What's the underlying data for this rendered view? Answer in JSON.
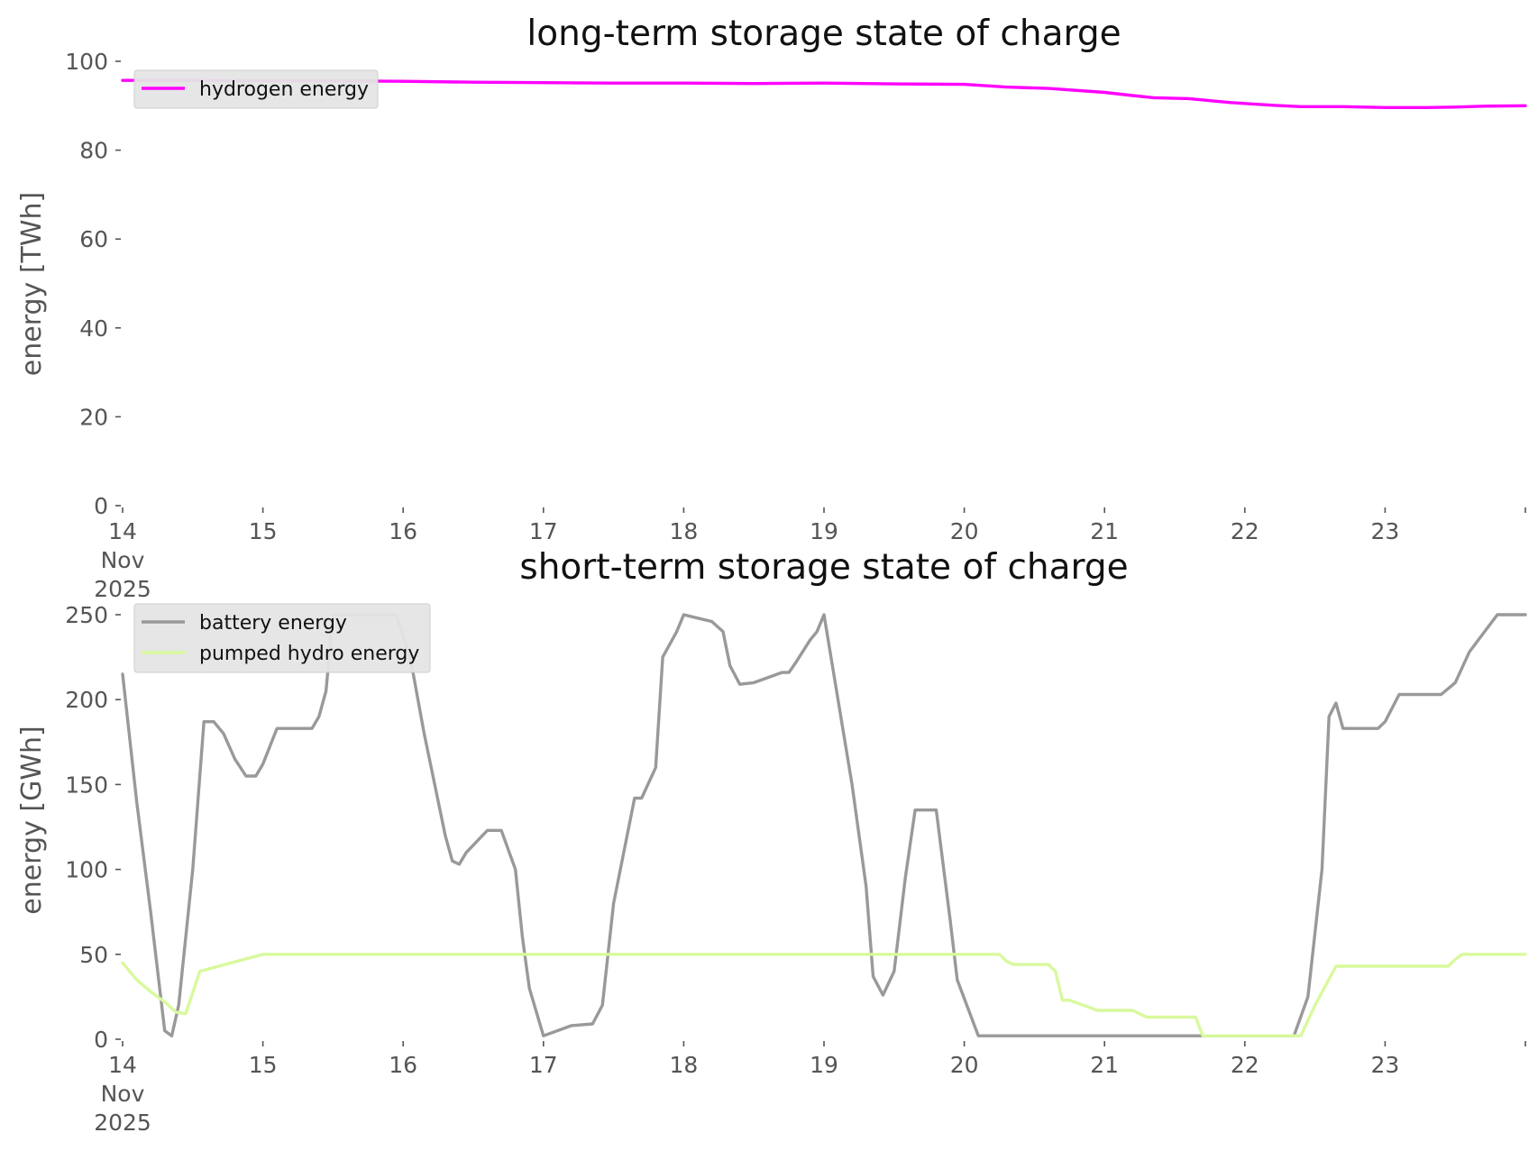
{
  "chart_data": [
    {
      "type": "line",
      "title": "long-term storage state of charge",
      "xlabel": "",
      "ylabel": "energy [TWh]",
      "x_unit": "days (Nov 2025)",
      "xlim": [
        14,
        24
      ],
      "ylim": [
        0,
        100
      ],
      "x_ticks": [
        {
          "value": 14,
          "label": "14",
          "sub": [
            "Nov",
            "2025"
          ]
        },
        {
          "value": 15,
          "label": "15"
        },
        {
          "value": 16,
          "label": "16"
        },
        {
          "value": 17,
          "label": "17"
        },
        {
          "value": 18,
          "label": "18"
        },
        {
          "value": 19,
          "label": "19"
        },
        {
          "value": 20,
          "label": "20"
        },
        {
          "value": 21,
          "label": "21"
        },
        {
          "value": 22,
          "label": "22"
        },
        {
          "value": 23,
          "label": "23"
        },
        {
          "value": 24,
          "label": ""
        }
      ],
      "y_ticks": [
        0,
        20,
        40,
        60,
        80,
        100
      ],
      "grid": false,
      "legend": "upper-left",
      "series": [
        {
          "name": "hydrogen energy",
          "color": "#ff00ff",
          "x": [
            14.0,
            14.5,
            15.0,
            15.5,
            16.0,
            16.5,
            17.0,
            17.5,
            18.0,
            18.5,
            19.0,
            19.5,
            20.0,
            20.3,
            20.6,
            21.0,
            21.2,
            21.35,
            21.6,
            21.9,
            22.2,
            22.4,
            22.7,
            23.0,
            23.3,
            23.5,
            23.7,
            24.0
          ],
          "y": [
            95.7,
            95.7,
            95.6,
            95.6,
            95.5,
            95.3,
            95.2,
            95.1,
            95.1,
            95.0,
            95.1,
            94.9,
            94.8,
            94.2,
            93.9,
            93.0,
            92.3,
            91.8,
            91.6,
            90.7,
            90.1,
            89.8,
            89.8,
            89.6,
            89.6,
            89.7,
            89.9,
            90.0
          ]
        }
      ]
    },
    {
      "type": "line",
      "title": "short-term storage state of charge",
      "xlabel": "",
      "ylabel": "energy [GWh]",
      "x_unit": "days (Nov 2025)",
      "xlim": [
        14,
        24
      ],
      "ylim": [
        0,
        250
      ],
      "x_ticks": [
        {
          "value": 14,
          "label": "14",
          "sub": [
            "Nov",
            "2025"
          ]
        },
        {
          "value": 15,
          "label": "15"
        },
        {
          "value": 16,
          "label": "16"
        },
        {
          "value": 17,
          "label": "17"
        },
        {
          "value": 18,
          "label": "18"
        },
        {
          "value": 19,
          "label": "19"
        },
        {
          "value": 20,
          "label": "20"
        },
        {
          "value": 21,
          "label": "21"
        },
        {
          "value": 22,
          "label": "22"
        },
        {
          "value": 23,
          "label": "23"
        },
        {
          "value": 24,
          "label": ""
        }
      ],
      "y_ticks": [
        0,
        50,
        100,
        150,
        200,
        250
      ],
      "grid": false,
      "legend": "upper-left",
      "series": [
        {
          "name": "battery energy",
          "color": "#999999",
          "x": [
            14.0,
            14.1,
            14.2,
            14.3,
            14.35,
            14.4,
            14.5,
            14.58,
            14.65,
            14.72,
            14.8,
            14.88,
            14.95,
            15.0,
            15.1,
            15.35,
            15.4,
            15.45,
            15.5,
            15.6,
            15.8,
            15.95,
            16.05,
            16.15,
            16.3,
            16.35,
            16.4,
            16.45,
            16.6,
            16.7,
            16.8,
            16.85,
            16.9,
            17.0,
            17.2,
            17.35,
            17.42,
            17.5,
            17.65,
            17.7,
            17.8,
            17.85,
            17.95,
            18.0,
            18.1,
            18.2,
            18.28,
            18.33,
            18.4,
            18.5,
            18.7,
            18.75,
            18.8,
            18.9,
            18.95,
            19.0,
            19.2,
            19.3,
            19.35,
            19.42,
            19.5,
            19.58,
            19.65,
            19.72,
            19.8,
            19.9,
            19.95,
            20.1,
            22.0,
            22.35,
            22.45,
            22.55,
            22.6,
            22.65,
            22.7,
            22.85,
            22.95,
            23.0,
            23.1,
            23.3,
            23.4,
            23.5,
            23.6,
            23.8,
            24.0
          ],
          "y": [
            215,
            140,
            75,
            5,
            2,
            20,
            100,
            187,
            187,
            180,
            165,
            155,
            155,
            162,
            183,
            183,
            190,
            205,
            250,
            250,
            250,
            250,
            225,
            180,
            120,
            105,
            103,
            110,
            123,
            123,
            100,
            60,
            30,
            2,
            8,
            9,
            20,
            80,
            142,
            142,
            160,
            225,
            240,
            250,
            248,
            246,
            240,
            220,
            209,
            210,
            216,
            216,
            222,
            235,
            240,
            250,
            150,
            90,
            37,
            26,
            40,
            95,
            135,
            135,
            135,
            70,
            35,
            2,
            2,
            2,
            25,
            100,
            190,
            198,
            183,
            183,
            183,
            187,
            203,
            203,
            203,
            210,
            228,
            250,
            250
          ]
        },
        {
          "name": "pumped hydro energy",
          "color": "#d9f99d",
          "x": [
            14.0,
            14.1,
            14.2,
            14.3,
            14.38,
            14.45,
            14.55,
            15.0,
            16.0,
            17.0,
            18.0,
            19.0,
            20.0,
            20.25,
            20.3,
            20.35,
            20.6,
            20.65,
            20.7,
            20.75,
            20.85,
            20.95,
            21.0,
            21.2,
            21.25,
            21.3,
            21.65,
            21.7,
            22.0,
            22.3,
            22.4,
            22.5,
            22.65,
            23.0,
            23.45,
            23.5,
            23.55,
            24.0
          ],
          "y": [
            45,
            35,
            28,
            22,
            16,
            15,
            40,
            50,
            50,
            50,
            50,
            50,
            50,
            50,
            46,
            44,
            44,
            40,
            23,
            23,
            20,
            17,
            17,
            17,
            15,
            13,
            13,
            2,
            2,
            2,
            2,
            20,
            43,
            43,
            43,
            47,
            50,
            50
          ]
        }
      ]
    }
  ]
}
